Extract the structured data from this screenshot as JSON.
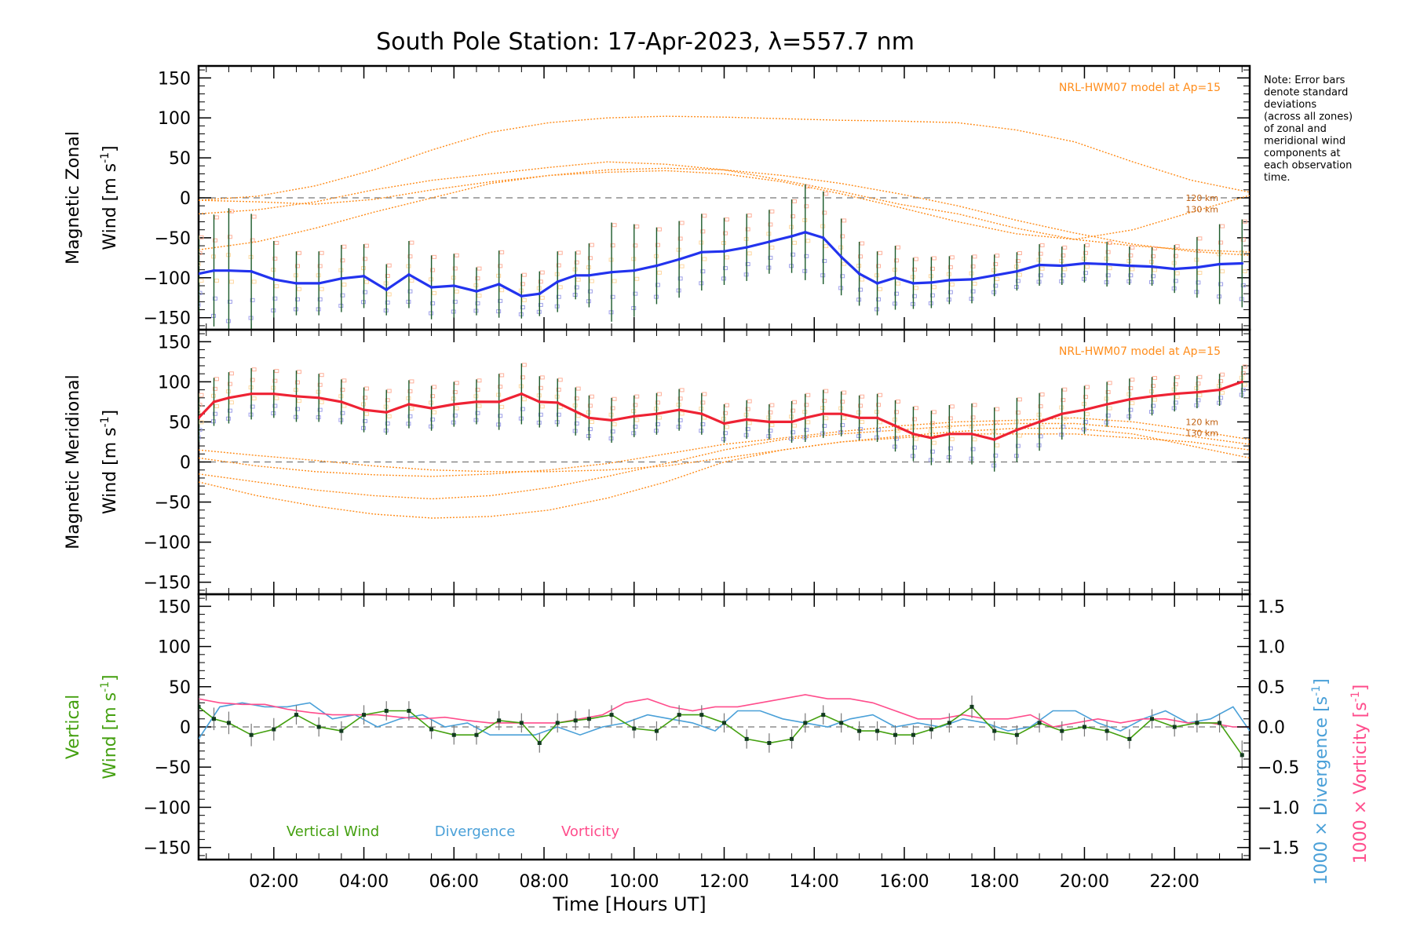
{
  "chart_data": {
    "title": "South Pole Station: 17-Apr-2023, λ=557.7 nm",
    "note_lines": [
      "Note: Error bars",
      "denote standard",
      "deviations",
      "(across all zones)",
      "of zonal and",
      "meridional wind",
      "components at",
      "each observation",
      "time."
    ],
    "xlabel": "Time [Hours UT]",
    "xlim": [
      0.33,
      23.67
    ],
    "x_ticks": [
      "02:00",
      "04:00",
      "06:00",
      "08:00",
      "10:00",
      "12:00",
      "14:00",
      "16:00",
      "18:00",
      "20:00",
      "22:00"
    ],
    "x_tick_hours": [
      2,
      4,
      6,
      8,
      10,
      12,
      14,
      16,
      18,
      20,
      22
    ],
    "y_ticks": [
      "150",
      "100",
      "50",
      "0",
      "−50",
      "−100",
      "−150"
    ],
    "y_tick_values": [
      150,
      100,
      50,
      0,
      -50,
      -100,
      -150
    ],
    "ylim": [
      -165,
      165
    ],
    "colors": {
      "zonal": "#2233ee",
      "meridional": "#ee2233",
      "vertical": "#44a010",
      "divergence": "#4aa0d8",
      "vorticity": "#ff4d8c",
      "model": "#ff8c1a",
      "errorbar": "#1a5a2a"
    },
    "panels": [
      {
        "name": "zonal",
        "type": "line",
        "ylabel_1": "Magnetic Zonal",
        "ylabel_2": "Wind [m s",
        "ylabel_sup": "-1",
        "ylabel_close": "]",
        "model_label": "NRL-HWM07 model at Ap=15",
        "alt_labels": [
          "120 km",
          "130 km"
        ],
        "x": [
          0.33,
          0.67,
          1.0,
          1.5,
          2.0,
          2.5,
          3.0,
          3.5,
          4.0,
          4.5,
          5.0,
          5.5,
          6.0,
          6.5,
          7.0,
          7.5,
          7.9,
          8.3,
          8.7,
          9.0,
          9.5,
          10.0,
          10.5,
          11.0,
          11.5,
          12.0,
          12.5,
          13.0,
          13.5,
          13.8,
          14.2,
          14.6,
          15.0,
          15.4,
          15.8,
          16.2,
          16.6,
          17.0,
          17.5,
          18.0,
          18.5,
          19.0,
          19.5,
          20.0,
          20.5,
          21.0,
          21.5,
          22.0,
          22.5,
          23.0,
          23.5
        ],
        "y": [
          -95,
          -91,
          -91,
          -92,
          -102,
          -107,
          -107,
          -101,
          -98,
          -115,
          -96,
          -112,
          -110,
          -117,
          -108,
          -123,
          -120,
          -105,
          -97,
          -97,
          -93,
          -91,
          -85,
          -77,
          -68,
          -67,
          -62,
          -55,
          -48,
          -43,
          -50,
          -74,
          -95,
          -107,
          -100,
          -107,
          -106,
          -103,
          -102,
          -97,
          -92,
          -84,
          -85,
          -82,
          -83,
          -85,
          -86,
          -89,
          -87,
          -83,
          -82
        ],
        "err": [
          48,
          70,
          78,
          72,
          48,
          40,
          40,
          42,
          40,
          32,
          42,
          40,
          40,
          30,
          42,
          28,
          28,
          38,
          30,
          40,
          62,
          58,
          48,
          48,
          48,
          42,
          42,
          40,
          46,
          60,
          58,
          48,
          40,
          40,
          40,
          32,
          32,
          30,
          30,
          26,
          24,
          26,
          24,
          24,
          28,
          24,
          24,
          30,
          38,
          50,
          55
        ],
        "models": [
          {
            "name": "model-1",
            "y": [
              -3,
              2,
              15,
              35,
              60,
              82,
              94,
              100,
              102,
              101,
              99,
              97,
              96,
              94,
              85,
              70,
              45,
              22,
              7
            ]
          },
          {
            "name": "model-2",
            "y": [
              -20,
              -15,
              -5,
              10,
              22,
              30,
              38,
              45,
              42,
              35,
              22,
              8,
              -8,
              -20,
              -38,
              -52,
              -60,
              -65,
              -68
            ]
          },
          {
            "name": "model-3",
            "y": [
              -65,
              -55,
              -38,
              -18,
              0,
              18,
              28,
              35,
              37,
              35,
              28,
              18,
              5,
              -10,
              -28,
              -44,
              -58,
              -67,
              -72
            ]
          },
          {
            "name": "model-4",
            "y": [
              -3,
              -5,
              -8,
              -2,
              10,
              20,
              28,
              32,
              34,
              30,
              20,
              5,
              -12,
              -30,
              -45,
              -52,
              -40,
              -18,
              3
            ]
          }
        ]
      },
      {
        "name": "meridional",
        "type": "line",
        "ylabel_1": "Magnetic Meridional",
        "ylabel_2": "Wind [m s",
        "ylabel_sup": "-1",
        "ylabel_close": "]",
        "model_label": "NRL-HWM07 model at Ap=15",
        "alt_labels": [
          "120 km",
          "130 km"
        ],
        "x": [
          0.33,
          0.67,
          1.0,
          1.5,
          2.0,
          2.5,
          3.0,
          3.5,
          4.0,
          4.5,
          5.0,
          5.5,
          6.0,
          6.5,
          7.0,
          7.5,
          7.9,
          8.3,
          8.7,
          9.0,
          9.5,
          10.0,
          10.5,
          11.0,
          11.5,
          12.0,
          12.5,
          13.0,
          13.5,
          13.8,
          14.2,
          14.6,
          15.0,
          15.4,
          15.8,
          16.2,
          16.6,
          17.0,
          17.5,
          18.0,
          18.5,
          19.0,
          19.5,
          20.0,
          20.5,
          21.0,
          21.5,
          22.0,
          22.5,
          23.0,
          23.5
        ],
        "y": [
          55,
          75,
          80,
          85,
          85,
          82,
          80,
          75,
          65,
          62,
          72,
          67,
          72,
          75,
          75,
          85,
          75,
          74,
          63,
          55,
          52,
          57,
          60,
          65,
          60,
          48,
          53,
          50,
          50,
          55,
          60,
          60,
          55,
          55,
          45,
          35,
          30,
          35,
          35,
          28,
          40,
          50,
          60,
          65,
          72,
          78,
          82,
          85,
          87,
          90,
          100
        ],
        "err": [
          30,
          30,
          32,
          32,
          30,
          32,
          30,
          28,
          28,
          28,
          30,
          28,
          28,
          28,
          35,
          38,
          32,
          30,
          30,
          28,
          28,
          26,
          26,
          26,
          26,
          24,
          24,
          22,
          26,
          30,
          30,
          28,
          28,
          30,
          32,
          34,
          34,
          36,
          38,
          40,
          40,
          36,
          32,
          30,
          28,
          26,
          24,
          22,
          20,
          20,
          20
        ],
        "models": [
          {
            "name": "model-1",
            "y": [
              15,
              8,
              2,
              -5,
              -10,
              -12,
              -12,
              -10,
              -5,
              5,
              15,
              25,
              32,
              38,
              42,
              42,
              35,
              20,
              5
            ]
          },
          {
            "name": "model-2",
            "y": [
              5,
              -5,
              -12,
              -16,
              -18,
              -15,
              -10,
              -2,
              10,
              22,
              30,
              38,
              45,
              50,
              52,
              55,
              50,
              40,
              28
            ]
          },
          {
            "name": "model-3",
            "y": [
              -15,
              -25,
              -35,
              -42,
              -46,
              -42,
              -32,
              -18,
              -2,
              15,
              28,
              35,
              40,
              45,
              48,
              48,
              42,
              32,
              22
            ]
          },
          {
            "name": "model-4",
            "y": [
              -25,
              -42,
              -55,
              -65,
              -70,
              -68,
              -60,
              -45,
              -25,
              0,
              15,
              25,
              30,
              35,
              35,
              35,
              30,
              25,
              15
            ]
          }
        ]
      },
      {
        "name": "vertical",
        "type": "line",
        "ylabel_1": "Vertical",
        "ylabel_2": "Wind [m s",
        "ylabel_sup": "-1",
        "ylabel_close": "]",
        "right_ticks": [
          "1.5",
          "1.0",
          "0.5",
          "0.0",
          "−0.5",
          "−1.0",
          "−1.5"
        ],
        "right_tick_values": [
          1.5,
          1.0,
          0.5,
          0.0,
          -0.5,
          -1.0,
          -1.5
        ],
        "right_ylim": [
          -1.65,
          1.65
        ],
        "right_label_div": "1000 × Divergence [s",
        "right_label_vor": "1000 × Vorticity [s",
        "right_label_sup": "-1",
        "right_label_close": "]",
        "legend": [
          "Vertical Wind",
          "Divergence",
          "Vorticity"
        ],
        "x": [
          0.33,
          0.67,
          1.0,
          1.5,
          2.0,
          2.5,
          3.0,
          3.5,
          4.0,
          4.5,
          5.0,
          5.5,
          6.0,
          6.5,
          7.0,
          7.5,
          7.9,
          8.3,
          8.7,
          9.0,
          9.5,
          10.0,
          10.5,
          11.0,
          11.5,
          12.0,
          12.5,
          13.0,
          13.5,
          13.8,
          14.2,
          14.6,
          15.0,
          15.4,
          15.8,
          16.2,
          16.6,
          17.0,
          17.5,
          18.0,
          18.5,
          19.0,
          19.5,
          20.0,
          20.5,
          21.0,
          21.5,
          22.0,
          22.5,
          23.0,
          23.5
        ],
        "y": [
          25,
          10,
          5,
          -10,
          -3,
          15,
          0,
          -5,
          15,
          20,
          20,
          -3,
          -10,
          -10,
          8,
          5,
          -20,
          5,
          8,
          10,
          15,
          -2,
          -5,
          15,
          15,
          5,
          -15,
          -20,
          -15,
          5,
          15,
          5,
          -5,
          -5,
          -10,
          -10,
          -3,
          5,
          25,
          -5,
          -10,
          5,
          -5,
          0,
          -5,
          -15,
          10,
          0,
          5,
          5,
          -35
        ],
        "err": [
          14,
          14,
          14,
          14,
          14,
          12,
          12,
          12,
          12,
          12,
          12,
          12,
          12,
          12,
          12,
          12,
          12,
          12,
          12,
          12,
          12,
          12,
          12,
          12,
          12,
          12,
          12,
          12,
          12,
          12,
          12,
          12,
          12,
          12,
          12,
          12,
          12,
          12,
          14,
          12,
          12,
          12,
          12,
          12,
          12,
          12,
          12,
          12,
          12,
          12,
          18
        ],
        "divergence_x": [
          0.33,
          0.8,
          1.3,
          1.8,
          2.3,
          2.8,
          3.3,
          3.8,
          4.3,
          4.8,
          5.3,
          5.8,
          6.3,
          6.8,
          7.3,
          7.8,
          8.3,
          8.8,
          9.3,
          9.8,
          10.3,
          10.8,
          11.3,
          11.8,
          12.3,
          12.8,
          13.3,
          13.8,
          14.3,
          14.8,
          15.3,
          15.8,
          16.3,
          16.8,
          17.3,
          17.8,
          18.3,
          18.8,
          19.3,
          19.8,
          20.3,
          20.8,
          21.3,
          21.8,
          22.3,
          22.8,
          23.3,
          23.67
        ],
        "divergence_y": [
          -0.15,
          0.25,
          0.3,
          0.25,
          0.25,
          0.3,
          0.1,
          0.15,
          0.0,
          0.1,
          0.15,
          0.0,
          0.05,
          -0.1,
          -0.1,
          -0.1,
          0.0,
          -0.1,
          0.0,
          0.05,
          0.15,
          0.1,
          0.05,
          -0.05,
          0.2,
          0.2,
          0.1,
          0.05,
          0.0,
          0.1,
          0.15,
          0.0,
          0.05,
          0.0,
          0.1,
          0.05,
          -0.05,
          0.0,
          0.2,
          0.2,
          0.05,
          -0.05,
          0.1,
          0.2,
          0.05,
          0.1,
          0.25,
          -0.05
        ],
        "vorticity_x": [
          0.33,
          0.8,
          1.3,
          1.8,
          2.3,
          2.8,
          3.3,
          3.8,
          4.3,
          4.8,
          5.3,
          5.8,
          6.3,
          6.8,
          7.3,
          7.8,
          8.3,
          8.8,
          9.3,
          9.8,
          10.3,
          10.8,
          11.3,
          11.8,
          12.3,
          12.8,
          13.3,
          13.8,
          14.3,
          14.8,
          15.3,
          15.8,
          16.3,
          16.8,
          17.3,
          17.8,
          18.3,
          18.8,
          19.3,
          19.8,
          20.3,
          20.8,
          21.3,
          21.8,
          22.3,
          22.8,
          23.3,
          23.67
        ],
        "vorticity_y": [
          0.35,
          0.3,
          0.28,
          0.28,
          0.22,
          0.18,
          0.15,
          0.15,
          0.15,
          0.12,
          0.1,
          0.12,
          0.08,
          0.05,
          0.05,
          0.05,
          0.05,
          0.1,
          0.15,
          0.3,
          0.35,
          0.25,
          0.2,
          0.25,
          0.25,
          0.3,
          0.35,
          0.4,
          0.35,
          0.35,
          0.3,
          0.2,
          0.1,
          0.1,
          0.15,
          0.1,
          0.1,
          0.15,
          0.0,
          0.05,
          0.1,
          0.05,
          0.1,
          0.1,
          0.05,
          0.05,
          0.0,
          0.0
        ]
      }
    ]
  }
}
